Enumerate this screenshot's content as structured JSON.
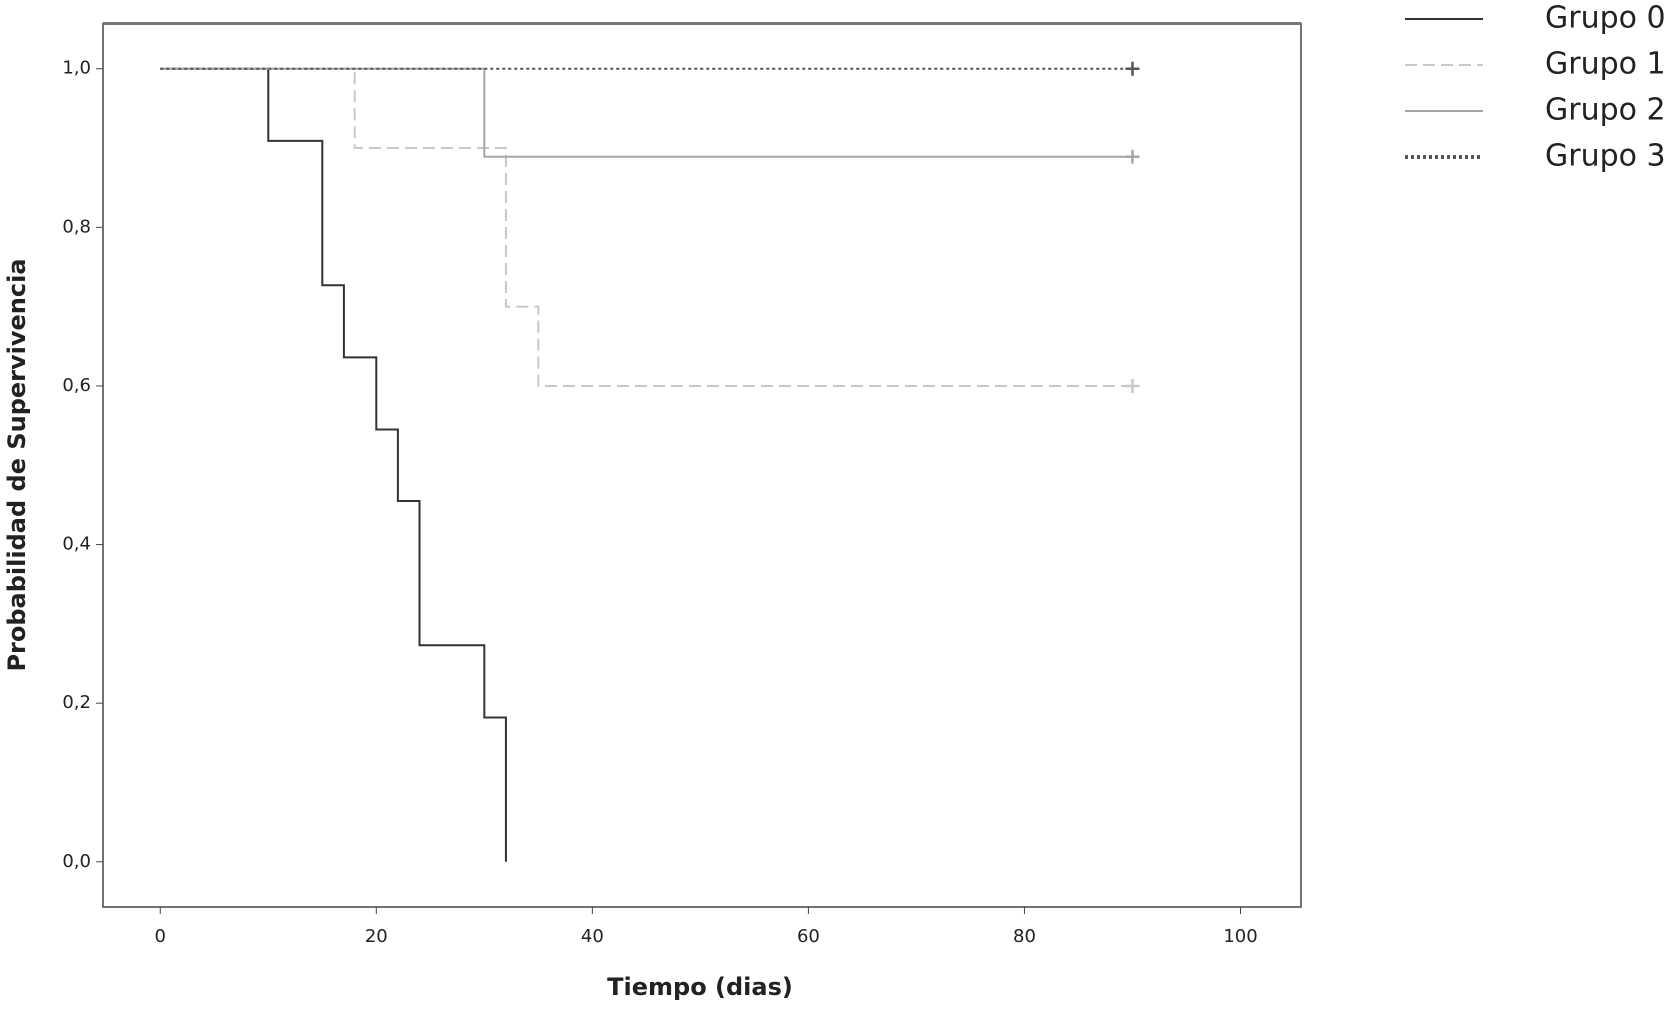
{
  "chart_data": {
    "type": "step",
    "xlabel": "Tiempo (dias)",
    "ylabel": "Probabilidad de Supervivencia",
    "xlim": [
      -5.3,
      105.6
    ],
    "ylim": [
      -0.057,
      1.057
    ],
    "xticks": [
      0,
      20,
      40,
      60,
      80,
      100
    ],
    "yticks": [
      {
        "value": 0,
        "label": "0,0"
      },
      {
        "value": 0.2,
        "label": "0,2"
      },
      {
        "value": 0.4,
        "label": "0,4"
      },
      {
        "value": 0.6,
        "label": "0,6"
      },
      {
        "value": 0.8,
        "label": "0,8"
      },
      {
        "value": 1,
        "label": "1,0"
      }
    ],
    "legend": "outside-right-top",
    "series": [
      {
        "name": "Grupo 0",
        "color": "#333333",
        "dash": "solid",
        "censored_end": false,
        "x": [
          0,
          10,
          15,
          17,
          20,
          22,
          24,
          30,
          32
        ],
        "values": [
          1,
          0.909,
          0.727,
          0.636,
          0.545,
          0.455,
          0.273,
          0.182,
          0
        ]
      },
      {
        "name": "Grupo 1",
        "color": "#c8c8c8",
        "dash": "dashed",
        "censored_end": true,
        "x": [
          0,
          18,
          32,
          35,
          90
        ],
        "values": [
          1,
          0.9,
          0.7,
          0.6,
          0.6
        ]
      },
      {
        "name": "Grupo 2",
        "color": "#a6a6a6",
        "dash": "solid",
        "censored_end": true,
        "x": [
          0,
          30,
          90
        ],
        "values": [
          1,
          0.889,
          0.889
        ]
      },
      {
        "name": "Grupo 3",
        "color": "#555555",
        "dash": "dotted",
        "censored_end": true,
        "x": [
          0,
          90
        ],
        "values": [
          1,
          1
        ]
      }
    ]
  }
}
